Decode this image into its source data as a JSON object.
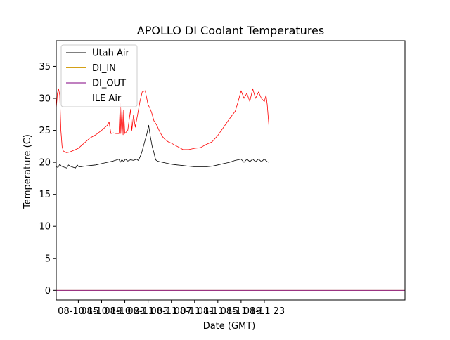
{
  "chart_data": {
    "type": "line",
    "title": "APOLLO DI Coolant Temperatures",
    "xlabel": "Date (GMT)",
    "ylabel": "Temperature (C)",
    "x_unit": "hours since 08-10 00:00 GMT",
    "xlim": [
      11.2,
      71.2
    ],
    "ylim": [
      -1.5,
      39
    ],
    "yticks": [
      0,
      5,
      10,
      15,
      20,
      25,
      30,
      35
    ],
    "xticks": [
      {
        "x": 15,
        "label": "08-10 15"
      },
      {
        "x": 19,
        "label": "08-10 19"
      },
      {
        "x": 23,
        "label": "08-10 23"
      },
      {
        "x": 27,
        "label": "08-11 03"
      },
      {
        "x": 31,
        "label": "08-11 07"
      },
      {
        "x": 35,
        "label": "08-11 11"
      },
      {
        "x": 39,
        "label": "08-11 15"
      },
      {
        "x": 43,
        "label": "08-11 19"
      },
      {
        "x": 47,
        "label": "08-11 23"
      }
    ],
    "legend_position": "top-left",
    "series": [
      {
        "name": "Utah Air",
        "color": "#000000",
        "x": [
          11.2,
          11.5,
          11.8,
          12.1,
          12.4,
          12.7,
          13.0,
          13.3,
          13.6,
          13.9,
          14.2,
          14.5,
          14.8,
          15.1,
          15.4,
          16,
          17,
          18,
          19,
          20,
          21,
          22,
          22.2,
          22.5,
          22.8,
          23.1,
          23.5,
          24,
          24.5,
          25,
          25.3,
          25.6,
          25.9,
          26.2,
          26.5,
          26.8,
          27.1,
          27.4,
          27.7,
          28.0,
          28.3,
          28.6,
          29,
          30,
          31,
          32,
          33,
          34,
          35,
          36,
          37,
          38,
          39,
          40,
          41,
          42,
          43,
          43.5,
          44,
          44.5,
          45,
          45.5,
          46,
          46.5,
          47,
          47.5,
          47.8
        ],
        "values": [
          19.3,
          19.2,
          19.7,
          19.4,
          19.3,
          19.2,
          19.1,
          19.6,
          19.4,
          19.3,
          19.2,
          19.1,
          19.6,
          19.3,
          19.3,
          19.4,
          19.5,
          19.6,
          19.8,
          20.0,
          20.2,
          20.5,
          20.0,
          20.4,
          20.1,
          20.5,
          20.2,
          20.4,
          20.3,
          20.5,
          20.3,
          20.8,
          21.5,
          22.5,
          23.5,
          24.5,
          25.8,
          24.0,
          22.5,
          21.5,
          20.4,
          20.2,
          20.1,
          19.9,
          19.7,
          19.6,
          19.5,
          19.4,
          19.3,
          19.3,
          19.3,
          19.4,
          19.6,
          19.8,
          20.0,
          20.3,
          20.5,
          20.0,
          20.5,
          20.1,
          20.5,
          20.1,
          20.5,
          20.1,
          20.5,
          20.1,
          20.0
        ]
      },
      {
        "name": "DI_IN",
        "color": "#d4a017",
        "x": [
          11.2,
          71.2
        ],
        "values": [
          0,
          0
        ]
      },
      {
        "name": "DI_OUT",
        "color": "#800080",
        "x": [
          11.2,
          71.2
        ],
        "values": [
          0,
          0
        ]
      },
      {
        "name": "ILE Air",
        "color": "#ff0000",
        "x": [
          11.2,
          11.4,
          11.6,
          11.8,
          12.0,
          12.2,
          12.4,
          12.7,
          13.0,
          13.5,
          14.0,
          15,
          16,
          17,
          18,
          19,
          20,
          20.3,
          20.6,
          21,
          21.5,
          22,
          22.2,
          22.3,
          22.5,
          22.7,
          22.8,
          23.0,
          23.5,
          24,
          24.2,
          24.5,
          24.8,
          25.0,
          25.3,
          25.6,
          26.0,
          26.5,
          27.0,
          27.3,
          27.6,
          28.0,
          28.5,
          29,
          29.5,
          30,
          30.5,
          31,
          32,
          33,
          34,
          35,
          36,
          37,
          38,
          39,
          40,
          41,
          42,
          42.5,
          43,
          43.5,
          44,
          44.5,
          45,
          45.5,
          46,
          46.5,
          47,
          47.3,
          47.5,
          47.8
        ],
        "values": [
          28.5,
          30.8,
          31.5,
          30.5,
          25.0,
          22.5,
          21.8,
          21.6,
          21.5,
          21.6,
          21.8,
          22.2,
          23.0,
          23.8,
          24.3,
          25.0,
          25.8,
          26.3,
          24.5,
          24.6,
          24.5,
          24.5,
          29.2,
          24.5,
          28.6,
          24.3,
          28.2,
          24.5,
          25.0,
          28.3,
          25.0,
          27.4,
          25.5,
          26.5,
          28.0,
          29.5,
          31.0,
          31.2,
          29.0,
          28.5,
          27.8,
          26.5,
          25.8,
          24.8,
          24.0,
          23.5,
          23.2,
          23.0,
          22.5,
          22.0,
          22.0,
          22.2,
          22.3,
          22.8,
          23.2,
          24.2,
          25.5,
          26.8,
          28.0,
          29.5,
          31.2,
          30.0,
          30.8,
          29.5,
          31.5,
          30.0,
          31.0,
          30.0,
          29.5,
          30.5,
          29.0,
          25.5
        ]
      }
    ]
  }
}
